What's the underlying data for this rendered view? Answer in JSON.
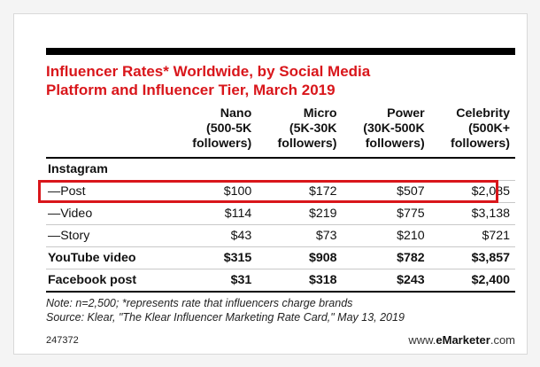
{
  "chart_data": {
    "type": "table",
    "title_line1": "Influencer Rates* Worldwide, by Social Media",
    "title_line2": "Platform and Influencer Tier, March 2019",
    "columns": [
      {
        "name": "Nano",
        "sub1": "(500-5K",
        "sub2": "followers)"
      },
      {
        "name": "Micro",
        "sub1": "(5K-30K",
        "sub2": "followers)"
      },
      {
        "name": "Power",
        "sub1": "(30K-500K",
        "sub2": "followers)"
      },
      {
        "name": "Celebrity",
        "sub1": "(500K+",
        "sub2": "followers)"
      }
    ],
    "section_label": "Instagram",
    "rows": [
      {
        "label": "—Post",
        "values": [
          "$100",
          "$172",
          "$507",
          "$2,085"
        ]
      },
      {
        "label": "—Video",
        "values": [
          "$114",
          "$219",
          "$775",
          "$3,138"
        ]
      },
      {
        "label": "—Story",
        "values": [
          "$43",
          "$73",
          "$210",
          "$721"
        ]
      },
      {
        "label": "YouTube video",
        "values": [
          "$315",
          "$908",
          "$782",
          "$3,857"
        ]
      },
      {
        "label": "Facebook post",
        "values": [
          "$31",
          "$318",
          "$243",
          "$2,400"
        ]
      }
    ],
    "note": "Note: n=2,500; *represents rate that influencers charge brands",
    "source": "Source: Klear, \"The Klear Influencer Marketing Rate Card,\" May 13, 2019"
  },
  "footer": {
    "chart_id": "247372",
    "brand_prefix": "www.",
    "brand_bold": "eMarketer",
    "brand_suffix": ".com"
  },
  "colors": {
    "title": "#d9161b",
    "highlight": "#d9161b"
  }
}
